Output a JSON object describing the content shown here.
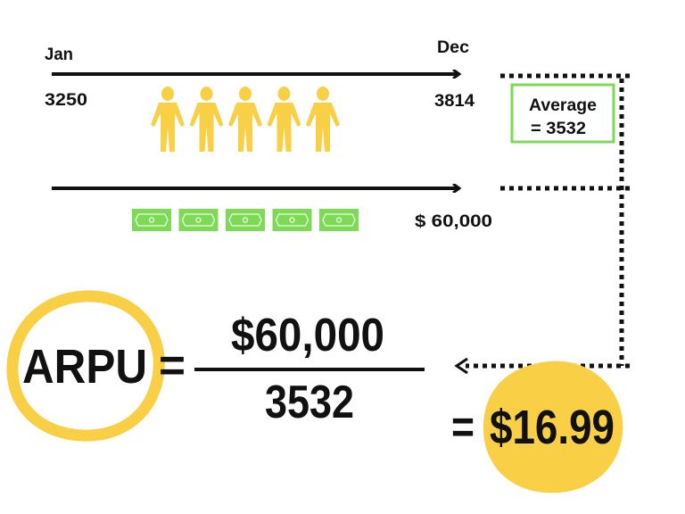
{
  "timeline": {
    "start_label": "Jan",
    "end_label": "Dec",
    "start_users": "3250",
    "end_users": "3814",
    "revenue": "$ 60,000",
    "people_icon_count": 5,
    "money_icon_count": 5
  },
  "average_box": {
    "line1": "Average",
    "line2": "= 3532"
  },
  "formula": {
    "lhs": "ARPU",
    "equals": "=",
    "numerator": "$60,000",
    "denominator": "3532",
    "result_equals": "=",
    "result": "$16.99"
  },
  "colors": {
    "yellow": "#f9cf45",
    "green": "#7ed957",
    "ink": "#111111"
  },
  "icons": {
    "person": "person-icon",
    "money": "banknote-icon"
  }
}
